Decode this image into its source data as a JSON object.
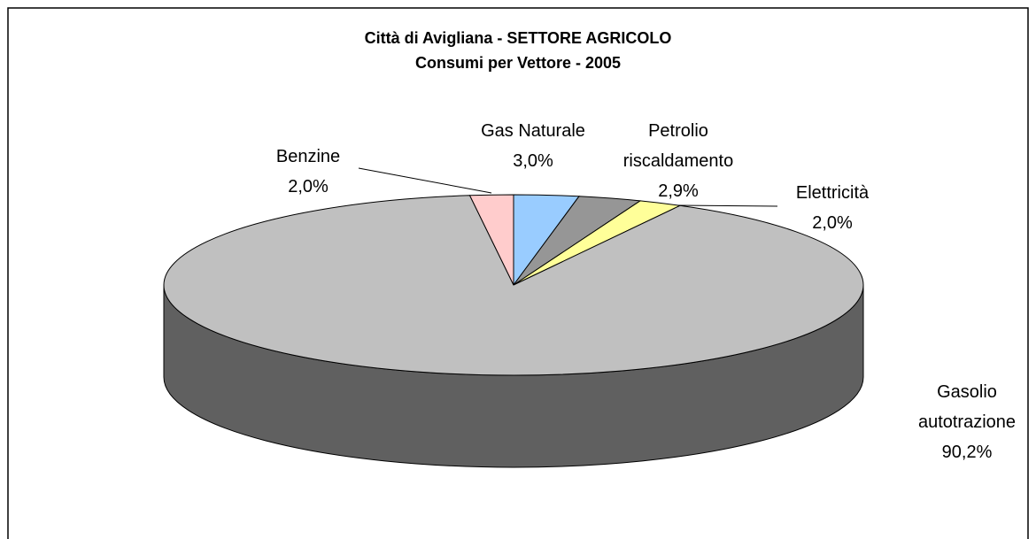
{
  "chart_data": {
    "type": "pie3d",
    "title": "Città di Avigliana - SETTORE AGRICOLO",
    "subtitle": "Consumi per Vettore - 2005",
    "categories": [
      "Gas Naturale",
      "Petrolio riscaldamento",
      "Elettricità",
      "Gasolio autotrazione",
      "Benzine"
    ],
    "values": [
      3.0,
      2.9,
      2.0,
      90.2,
      2.0
    ],
    "value_labels": [
      "3,0%",
      "2,9%",
      "2,0%",
      "90,2%",
      "2,0%"
    ],
    "colors": [
      "#99ccff",
      "#969696",
      "#ffff99",
      "#c0c0c0",
      "#ffcccc"
    ]
  }
}
